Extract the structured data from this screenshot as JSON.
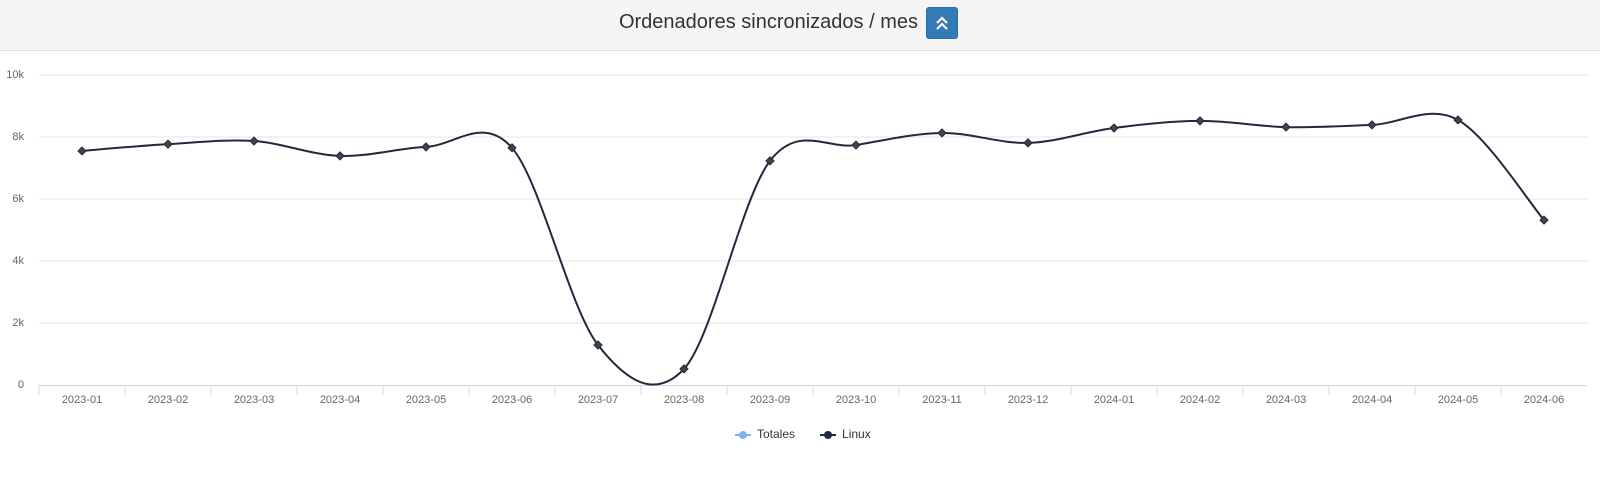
{
  "chart_data": {
    "type": "line",
    "title": "Ordenadores sincronizados / mes",
    "categories": [
      "2023-01",
      "2023-02",
      "2023-03",
      "2023-04",
      "2023-05",
      "2023-06",
      "2023-07",
      "2023-08",
      "2023-09",
      "2023-10",
      "2023-11",
      "2023-12",
      "2024-01",
      "2024-02",
      "2024-03",
      "2024-04",
      "2024-05",
      "2024-06"
    ],
    "series": [
      {
        "name": "Totales",
        "color": "#7cb5ec",
        "values": [
          null,
          null,
          null,
          null,
          null,
          null,
          null,
          null,
          null,
          null,
          null,
          null,
          null,
          null,
          null,
          null,
          null,
          null
        ]
      },
      {
        "name": "Linux",
        "color": "#1f2a3c",
        "values": [
          7550,
          7770,
          7870,
          7390,
          7680,
          7650,
          1290,
          520,
          7230,
          7740,
          8130,
          7810,
          8290,
          8520,
          8320,
          8390,
          8550,
          5320
        ]
      }
    ],
    "ylim": [
      0,
      10000
    ],
    "yticks": [
      0,
      {
        "value": 2000,
        "label": "2k"
      },
      {
        "value": 4000,
        "label": "4k"
      },
      {
        "value": 6000,
        "label": "6k"
      },
      {
        "value": 8000,
        "label": "8k"
      },
      {
        "value": 10000,
        "label": "10k"
      }
    ],
    "grid": true,
    "legend": "bottom"
  }
}
